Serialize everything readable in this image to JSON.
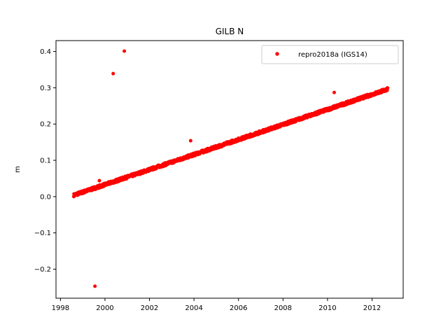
{
  "chart_data": {
    "type": "scatter",
    "title": "GILB N",
    "xlabel": "",
    "ylabel": "m",
    "xlim": [
      1997.8,
      2013.4
    ],
    "ylim": [
      -0.28,
      0.43
    ],
    "xticks": [
      1998,
      2000,
      2002,
      2004,
      2006,
      2008,
      2010,
      2012
    ],
    "yticks": [
      -0.2,
      -0.1,
      0.0,
      0.1,
      0.2,
      0.3,
      0.4
    ],
    "ytick_labels": [
      "−0.2",
      "−0.1",
      "0.0",
      "0.1",
      "0.2",
      "0.3",
      "0.4"
    ],
    "grid": false,
    "legend_position": "top-right",
    "marker_color": "#ff0000",
    "series": [
      {
        "name": "repro2018a (IGS14)",
        "trend": {
          "x_start": 1998.6,
          "x_end": 2012.7,
          "y_start": 0.004,
          "y_end": 0.296
        },
        "outliers": [
          {
            "x": 1999.55,
            "y": -0.247
          },
          {
            "x": 1999.75,
            "y": 0.044
          },
          {
            "x": 2000.37,
            "y": 0.339
          },
          {
            "x": 2000.87,
            "y": 0.401
          },
          {
            "x": 2003.85,
            "y": 0.154
          },
          {
            "x": 2010.3,
            "y": 0.287
          }
        ]
      }
    ]
  }
}
